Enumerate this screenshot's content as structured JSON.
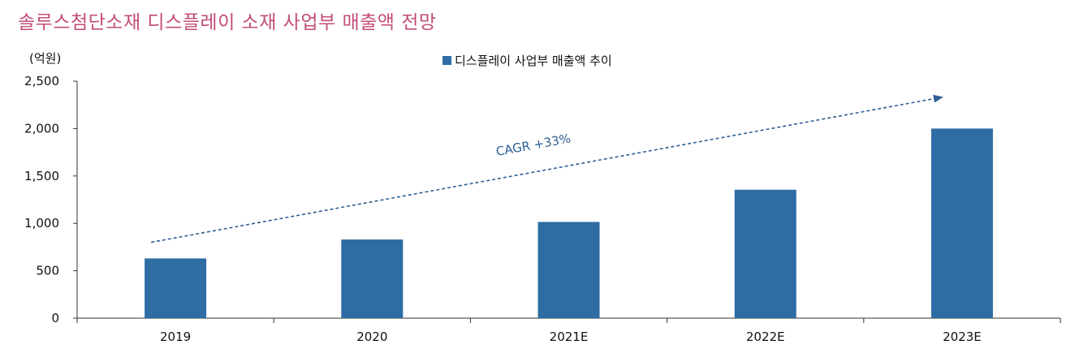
{
  "title": "솔루스첨단소재 디스플레이 소재 사업부 매출액 전망",
  "chart_data": {
    "type": "bar",
    "title": "솔루스첨단소재 디스플레이 소재 사업부 매출액 전망",
    "unit_label": "(억원)",
    "categories": [
      "2019",
      "2020",
      "2021E",
      "2022E",
      "2023E"
    ],
    "series": [
      {
        "name": "디스플레이 사업부 매출액 추이",
        "color": "#2e6ca4",
        "values": [
          630,
          830,
          1015,
          1355,
          2000
        ]
      }
    ],
    "ylim": [
      0,
      2500
    ],
    "yticks": [
      0,
      500,
      1000,
      1500,
      2000,
      2500
    ],
    "ytick_labels": [
      "0",
      "500",
      "1,000",
      "1,500",
      "2,000",
      "2,500"
    ],
    "grid": false,
    "legend_position": "top-center",
    "annotation": {
      "text": "CAGR +33%",
      "arrow_color": "#2e5f95",
      "arrow_style": "dashed",
      "from_value": 800,
      "to_value": 2330
    }
  }
}
